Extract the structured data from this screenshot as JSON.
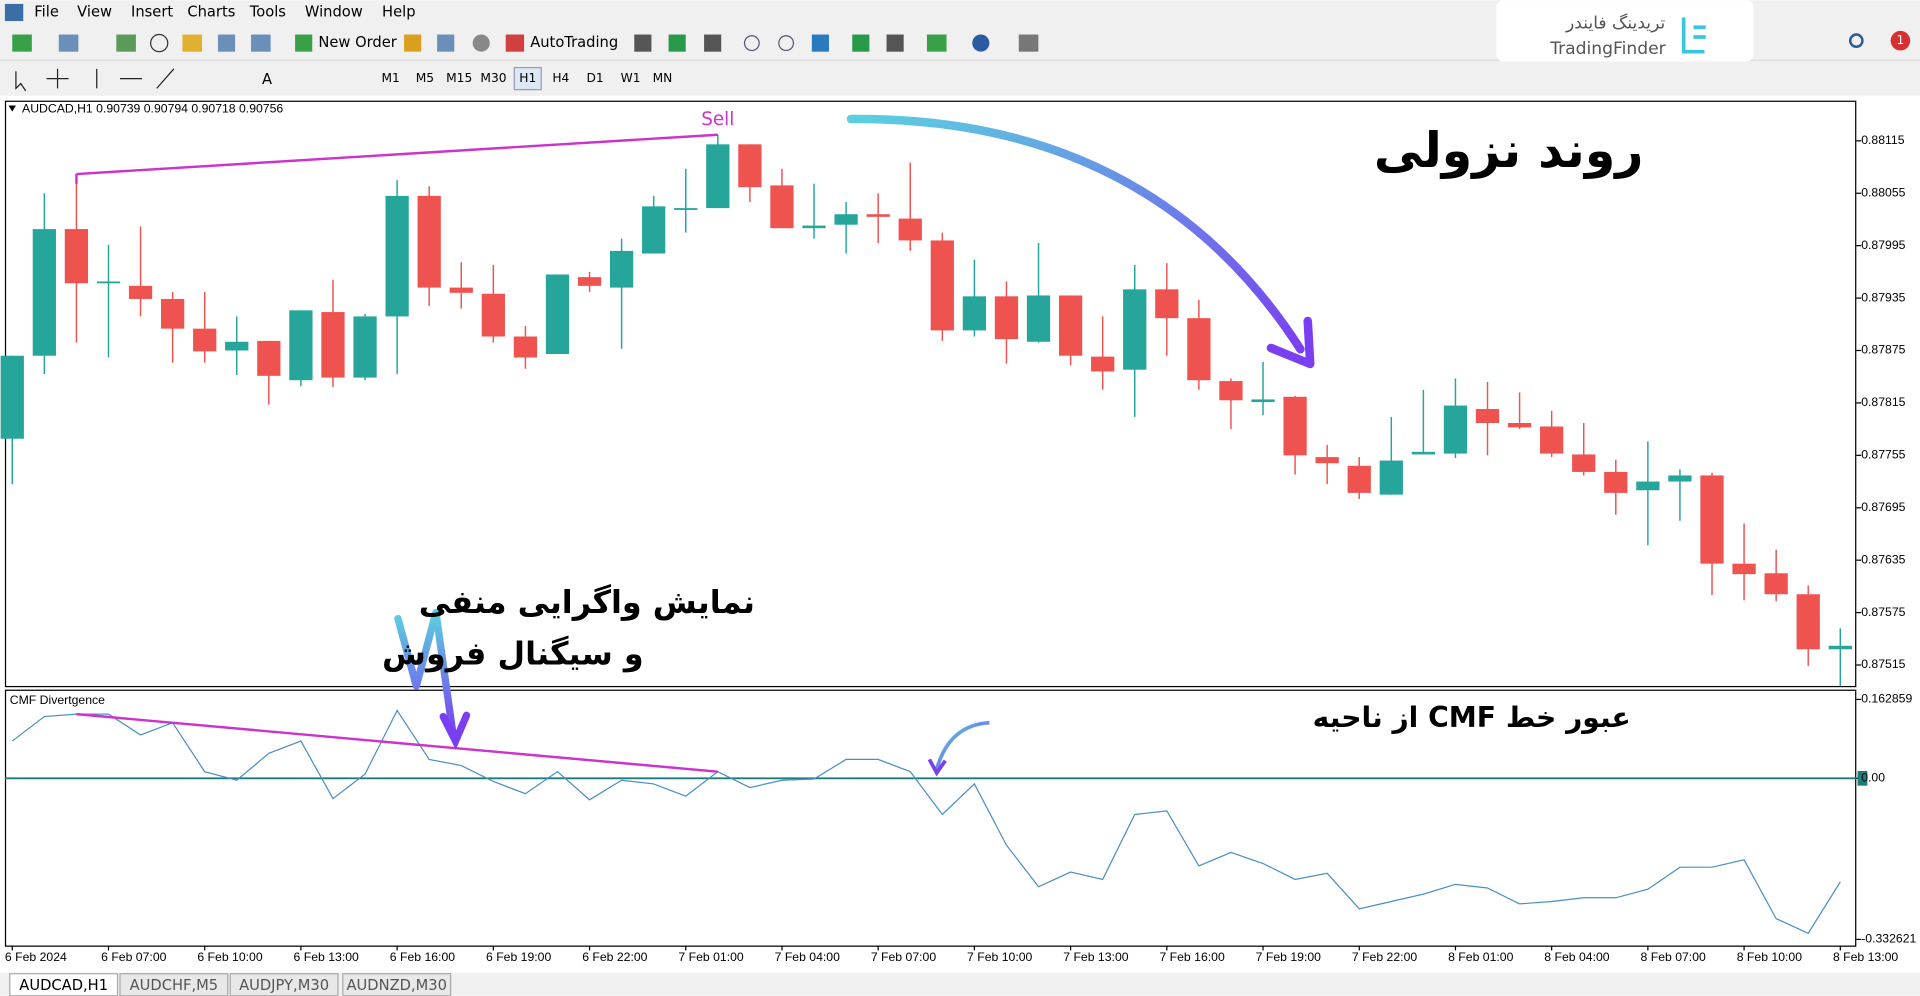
{
  "menu": [
    "File",
    "View",
    "Insert",
    "Charts",
    "Tools",
    "Window",
    "Help"
  ],
  "toolbar": {
    "new_order": "New Order",
    "auto_trading": "AutoTrading"
  },
  "timeframes": [
    "M1",
    "M5",
    "M15",
    "M30",
    "H1",
    "H4",
    "D1",
    "W1",
    "MN"
  ],
  "logo": {
    "fa": "تریدینگ فایندر",
    "en": "TradingFinder"
  },
  "notifications": 1,
  "annotations": [
    "نمایش واگرایی منفی",
    "و سیگنال فروش"
  ],
  "tabs": [
    "AUDCAD,H1",
    "AUDCHF,M5",
    "AUDJPY,M30",
    "AUDNZD,M30"
  ],
  "chart_data": [
    {
      "type": "candlestick",
      "header": "AUDCAD,H1 0.90739 0.90794 0.90718 0.90756",
      "signal_label": "Sell",
      "annotation": "روند نزولی",
      "up_color": "#26a69a",
      "down_color": "#ef5350",
      "divergence_color": "#cc33cc",
      "open": [
        0.87774,
        0.87869,
        0.88014,
        0.87954,
        0.87949,
        0.87934,
        0.879,
        0.87875,
        0.87886,
        0.87841,
        0.87919,
        0.87844,
        0.87914,
        0.88052,
        0.87947,
        0.8794,
        0.87891,
        0.87871,
        0.87959,
        0.87947,
        0.87986,
        0.88036,
        0.88038,
        0.88111,
        0.88064,
        0.88015,
        0.88019,
        0.88031,
        0.88026,
        0.88001,
        0.87898,
        0.87937,
        0.87885,
        0.87938,
        0.87868,
        0.87853,
        0.87945,
        0.87912,
        0.8784,
        0.87816,
        0.87822,
        0.87753,
        0.87743,
        0.8771,
        0.87756,
        0.87757,
        0.87808,
        0.87792,
        0.87788,
        0.87756,
        0.87736,
        0.87715,
        0.87725,
        0.87732,
        0.87631,
        0.8762,
        0.87596,
        0.87533
      ],
      "high": [
        0.87869,
        0.88055,
        0.88077,
        0.87996,
        0.88017,
        0.87942,
        0.87942,
        0.87914,
        0.87886,
        0.87921,
        0.87956,
        0.87917,
        0.8807,
        0.88063,
        0.87976,
        0.87973,
        0.87903,
        0.87962,
        0.87965,
        0.88003,
        0.88052,
        0.88083,
        0.88122,
        0.88111,
        0.88083,
        0.88066,
        0.88045,
        0.88055,
        0.8809,
        0.8801,
        0.87979,
        0.87954,
        0.87998,
        0.87938,
        0.87914,
        0.87973,
        0.87975,
        0.87933,
        0.87843,
        0.87862,
        0.87823,
        0.87767,
        0.87753,
        0.87799,
        0.8783,
        0.87843,
        0.87839,
        0.87827,
        0.87806,
        0.87792,
        0.8775,
        0.87771,
        0.87739,
        0.87735,
        0.87677,
        0.87647,
        0.87606,
        0.87557
      ],
      "low": [
        0.87722,
        0.87848,
        0.87884,
        0.87867,
        0.87914,
        0.87861,
        0.87861,
        0.87847,
        0.87813,
        0.87834,
        0.87833,
        0.87841,
        0.87848,
        0.87926,
        0.87923,
        0.87884,
        0.87854,
        0.87871,
        0.87942,
        0.87877,
        0.87986,
        0.8801,
        0.88038,
        0.88045,
        0.88015,
        0.88003,
        0.87986,
        0.87998,
        0.87989,
        0.87886,
        0.87891,
        0.8786,
        0.87884,
        0.87858,
        0.8783,
        0.87799,
        0.87869,
        0.8783,
        0.87785,
        0.87801,
        0.87733,
        0.87722,
        0.87705,
        0.8771,
        0.87756,
        0.87752,
        0.87755,
        0.87785,
        0.87753,
        0.87732,
        0.87687,
        0.87652,
        0.8768,
        0.87595,
        0.87589,
        0.87588,
        0.87514,
        0.87491
      ],
      "close": [
        0.87869,
        0.88014,
        0.87952,
        0.87954,
        0.87934,
        0.879,
        0.87874,
        0.87885,
        0.87846,
        0.87921,
        0.87844,
        0.87914,
        0.88052,
        0.87947,
        0.87941,
        0.87891,
        0.87867,
        0.87962,
        0.87949,
        0.87989,
        0.8804,
        0.88038,
        0.88111,
        0.88062,
        0.88015,
        0.88018,
        0.88031,
        0.88028,
        0.88001,
        0.87898,
        0.87937,
        0.87888,
        0.87938,
        0.87869,
        0.87851,
        0.87945,
        0.87912,
        0.87841,
        0.87818,
        0.87819,
        0.87755,
        0.87746,
        0.87712,
        0.87749,
        0.87759,
        0.87812,
        0.87792,
        0.87787,
        0.87757,
        0.87736,
        0.87712,
        0.87725,
        0.87732,
        0.87631,
        0.87619,
        0.87596,
        0.87533,
        0.87537
      ],
      "xlim": [
        -0.23,
        57.5
      ],
      "xticks": [
        {
          "value": 0,
          "label": "6 Feb 2024"
        },
        {
          "value": 3,
          "label": "6 Feb 07:00"
        },
        {
          "value": 6,
          "label": "6 Feb 10:00"
        },
        {
          "value": 9,
          "label": "6 Feb 13:00"
        },
        {
          "value": 12,
          "label": "6 Feb 16:00"
        },
        {
          "value": 15,
          "label": "6 Feb 19:00"
        },
        {
          "value": 18,
          "label": "6 Feb 22:00"
        },
        {
          "value": 21,
          "label": "7 Feb 01:00"
        },
        {
          "value": 24,
          "label": "7 Feb 04:00"
        },
        {
          "value": 27,
          "label": "7 Feb 07:00"
        },
        {
          "value": 30,
          "label": "7 Feb 10:00"
        },
        {
          "value": 33,
          "label": "7 Feb 13:00"
        },
        {
          "value": 36,
          "label": "7 Feb 16:00"
        },
        {
          "value": 39,
          "label": "7 Feb 19:00"
        },
        {
          "value": 42,
          "label": "7 Feb 22:00"
        },
        {
          "value": 45,
          "label": "8 Feb 01:00"
        },
        {
          "value": 48,
          "label": "8 Feb 04:00"
        },
        {
          "value": 51,
          "label": "8 Feb 07:00"
        },
        {
          "value": 54,
          "label": "8 Feb 10:00"
        },
        {
          "value": 57,
          "label": "8 Feb 13:00"
        }
      ],
      "ylim": [
        0.87491,
        0.88161
      ],
      "yticks": [
        0.88115,
        0.88055,
        0.87995,
        0.87935,
        0.87875,
        0.87815,
        0.87755,
        0.87695,
        0.87635,
        0.87575,
        0.87515
      ]
    },
    {
      "type": "line",
      "title": "CMF Divertgence",
      "annotation": "عبور خط CMF از ناحیه",
      "color": "#4a8ec2",
      "zero_color": "#1c7c7c",
      "values": [
        0.0769,
        0.1275,
        0.1325,
        0.1325,
        0.0896,
        0.1148,
        0.0137,
        -0.004,
        0.0516,
        0.0769,
        -0.0419,
        0.0087,
        0.1401,
        0.039,
        0.0264,
        -0.0065,
        -0.0318,
        0.0137,
        -0.0444,
        -0.004,
        -0.0116,
        -0.0368,
        0.0137,
        -0.0191,
        -0.004,
        -0.0014,
        0.039,
        0.039,
        0.0137,
        -0.0747,
        -0.0116,
        -0.1379,
        -0.2239,
        -0.1936,
        -0.2088,
        -0.0747,
        -0.0672,
        -0.1809,
        -0.1531,
        -0.1759,
        -0.2088,
        -0.1961,
        -0.2694,
        -0.2543,
        -0.2391,
        -0.2189,
        -0.2264,
        -0.2593,
        -0.2543,
        -0.2467,
        -0.2467,
        -0.229,
        -0.1835,
        -0.1835,
        -0.1683,
        -0.2897,
        -0.32,
        -0.2138
      ],
      "ylim": [
        -0.3453,
        0.1831
      ],
      "yticks": [
        0.162859,
        {
          "value": 0,
          "label": "0.00"
        },
        -0.332621
      ]
    }
  ]
}
